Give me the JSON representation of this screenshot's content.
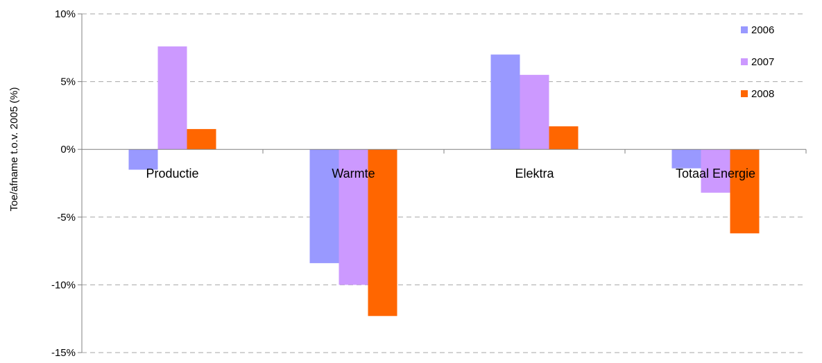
{
  "chart_data": {
    "type": "bar",
    "title": "",
    "xlabel": "",
    "ylabel": "Toe/afname t.o.v. 2005 (%)",
    "ylim": [
      -15,
      10
    ],
    "yticks": [
      10,
      5,
      0,
      -5,
      -10,
      -15
    ],
    "ytick_labels": [
      "10%",
      "5%",
      "0%",
      "-5%",
      "-10%",
      "-15%"
    ],
    "categories": [
      "Productie",
      "Warmte",
      "Elektra",
      "Totaal Energie"
    ],
    "series": [
      {
        "name": "2006",
        "color": "#9999ff",
        "values": [
          -1.5,
          -8.4,
          7.0,
          -1.4
        ]
      },
      {
        "name": "2007",
        "color": "#cc99ff",
        "values": [
          7.6,
          -10.0,
          5.5,
          -3.2
        ]
      },
      {
        "name": "2008",
        "color": "#ff6600",
        "values": [
          1.5,
          -12.3,
          1.7,
          -6.2
        ]
      }
    ],
    "grid": true,
    "legend": "top-right"
  }
}
